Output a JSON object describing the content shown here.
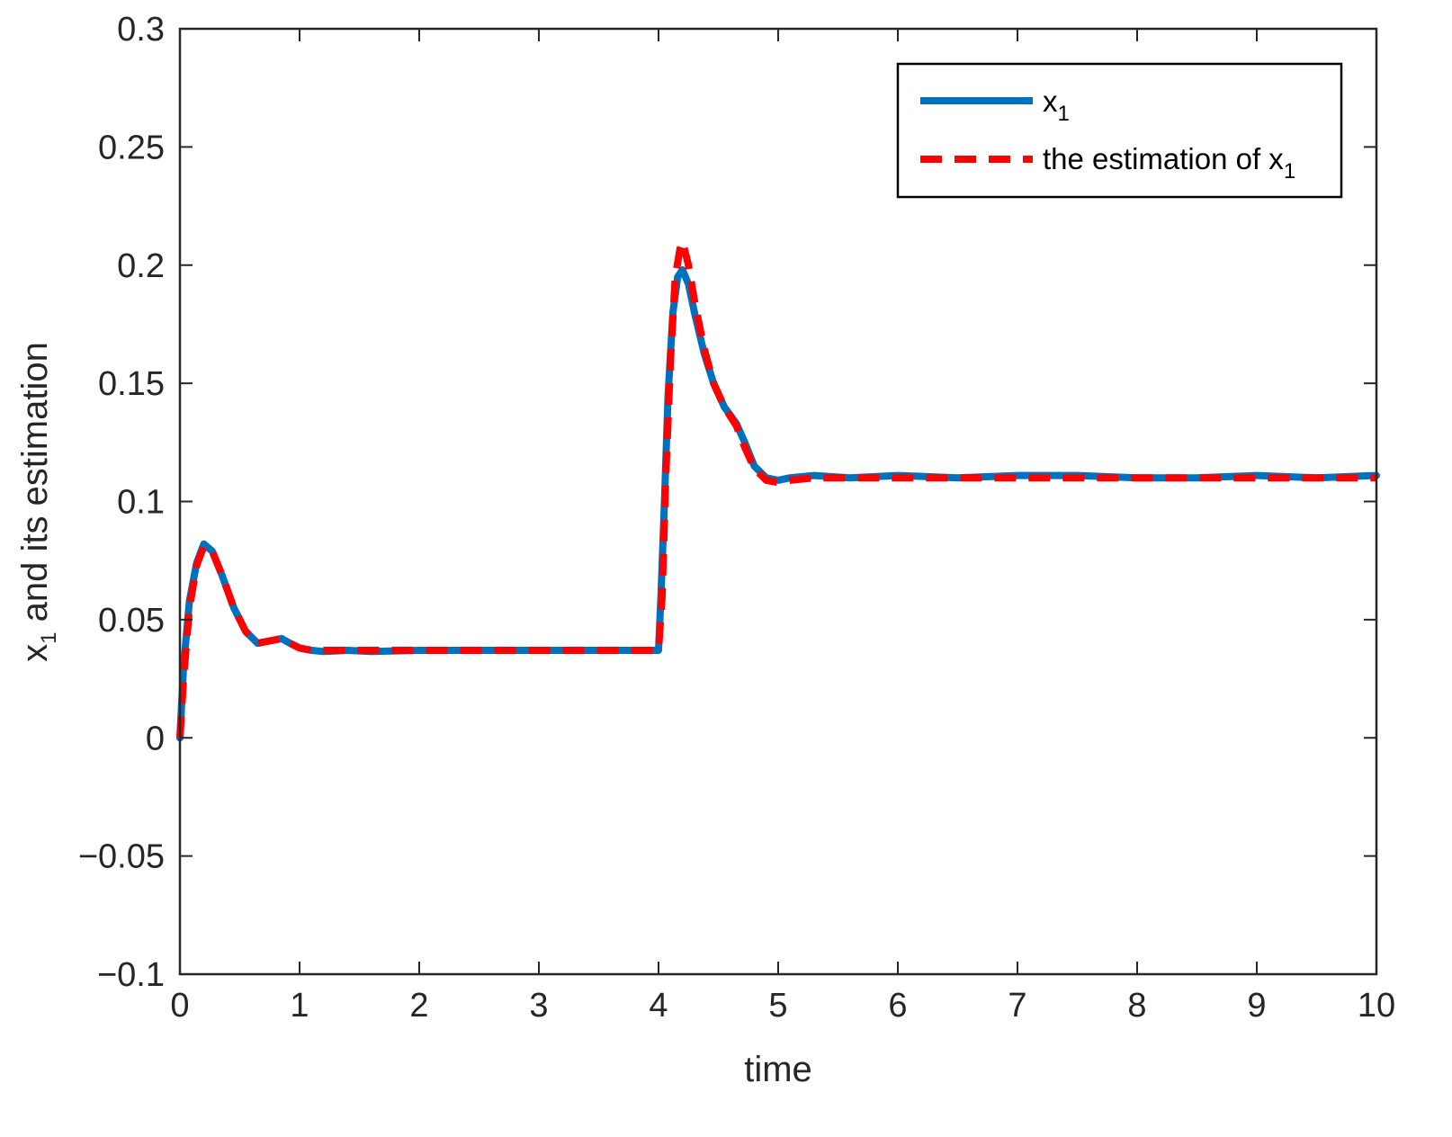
{
  "chart_data": {
    "type": "line",
    "xlabel": "time",
    "ylabel": {
      "main": "x",
      "sub": "1",
      "rest": " and its estimation"
    },
    "xlim": [
      0,
      10
    ],
    "ylim": [
      -0.1,
      0.3
    ],
    "xticks": [
      0,
      1,
      2,
      3,
      4,
      5,
      6,
      7,
      8,
      9,
      10
    ],
    "yticks": [
      -0.1,
      -0.05,
      0,
      0.05,
      0.1,
      0.15,
      0.2,
      0.25,
      0.3
    ],
    "xtick_labels": [
      "0",
      "1",
      "2",
      "3",
      "4",
      "5",
      "6",
      "7",
      "8",
      "9",
      "10"
    ],
    "ytick_labels": [
      "−0.1",
      "−0.05",
      "0",
      "0.05",
      "0.1",
      "0.15",
      "0.2",
      "0.25",
      "0.3"
    ],
    "grid": false,
    "legend_position": "top-right",
    "series": [
      {
        "name": {
          "main": "x",
          "sub": "1"
        },
        "color": "#0072BD",
        "style": "solid",
        "x": [
          0,
          0.03,
          0.08,
          0.14,
          0.2,
          0.27,
          0.35,
          0.45,
          0.55,
          0.65,
          0.75,
          0.85,
          0.92,
          1.0,
          1.1,
          1.2,
          1.4,
          1.6,
          2.0,
          2.5,
          3.0,
          3.5,
          3.8,
          4.0,
          4.02,
          4.05,
          4.08,
          4.12,
          4.16,
          4.2,
          4.25,
          4.3,
          4.38,
          4.46,
          4.55,
          4.65,
          4.72,
          4.8,
          4.9,
          5.0,
          5.1,
          5.3,
          5.6,
          6.0,
          6.5,
          7.0,
          7.5,
          8.0,
          8.5,
          9.0,
          9.5,
          10.0
        ],
        "y": [
          0.0,
          0.03,
          0.058,
          0.074,
          0.082,
          0.079,
          0.069,
          0.055,
          0.045,
          0.04,
          0.041,
          0.042,
          0.04,
          0.038,
          0.037,
          0.0365,
          0.037,
          0.0365,
          0.037,
          0.037,
          0.037,
          0.037,
          0.037,
          0.037,
          0.06,
          0.1,
          0.145,
          0.18,
          0.195,
          0.198,
          0.192,
          0.18,
          0.163,
          0.15,
          0.14,
          0.133,
          0.125,
          0.115,
          0.11,
          0.109,
          0.11,
          0.111,
          0.11,
          0.111,
          0.11,
          0.111,
          0.111,
          0.11,
          0.11,
          0.111,
          0.11,
          0.111
        ]
      },
      {
        "name": {
          "main": "the estimation of x",
          "sub": "1"
        },
        "color": "#FF0000",
        "style": "dashed",
        "x": [
          0,
          0.03,
          0.08,
          0.14,
          0.2,
          0.27,
          0.35,
          0.45,
          0.55,
          0.65,
          0.75,
          0.85,
          0.92,
          1.0,
          1.1,
          1.2,
          1.4,
          1.6,
          2.0,
          2.5,
          3.0,
          3.5,
          3.8,
          4.0,
          4.03,
          4.06,
          4.1,
          4.14,
          4.18,
          4.2,
          4.25,
          4.3,
          4.38,
          4.46,
          4.55,
          4.65,
          4.72,
          4.8,
          4.9,
          5.0,
          5.1,
          5.3,
          5.6,
          6.0,
          6.5,
          7.0,
          7.5,
          8.0,
          8.5,
          9.0,
          9.5,
          10.0
        ],
        "y": [
          0.0,
          0.025,
          0.055,
          0.073,
          0.081,
          0.079,
          0.069,
          0.055,
          0.045,
          0.04,
          0.041,
          0.042,
          0.04,
          0.038,
          0.037,
          0.037,
          0.037,
          0.037,
          0.037,
          0.037,
          0.037,
          0.037,
          0.037,
          0.037,
          0.06,
          0.11,
          0.16,
          0.195,
          0.207,
          0.21,
          0.2,
          0.185,
          0.165,
          0.15,
          0.14,
          0.132,
          0.123,
          0.114,
          0.109,
          0.108,
          0.109,
          0.11,
          0.11,
          0.11,
          0.11,
          0.11,
          0.11,
          0.11,
          0.11,
          0.11,
          0.11,
          0.11
        ]
      }
    ]
  }
}
